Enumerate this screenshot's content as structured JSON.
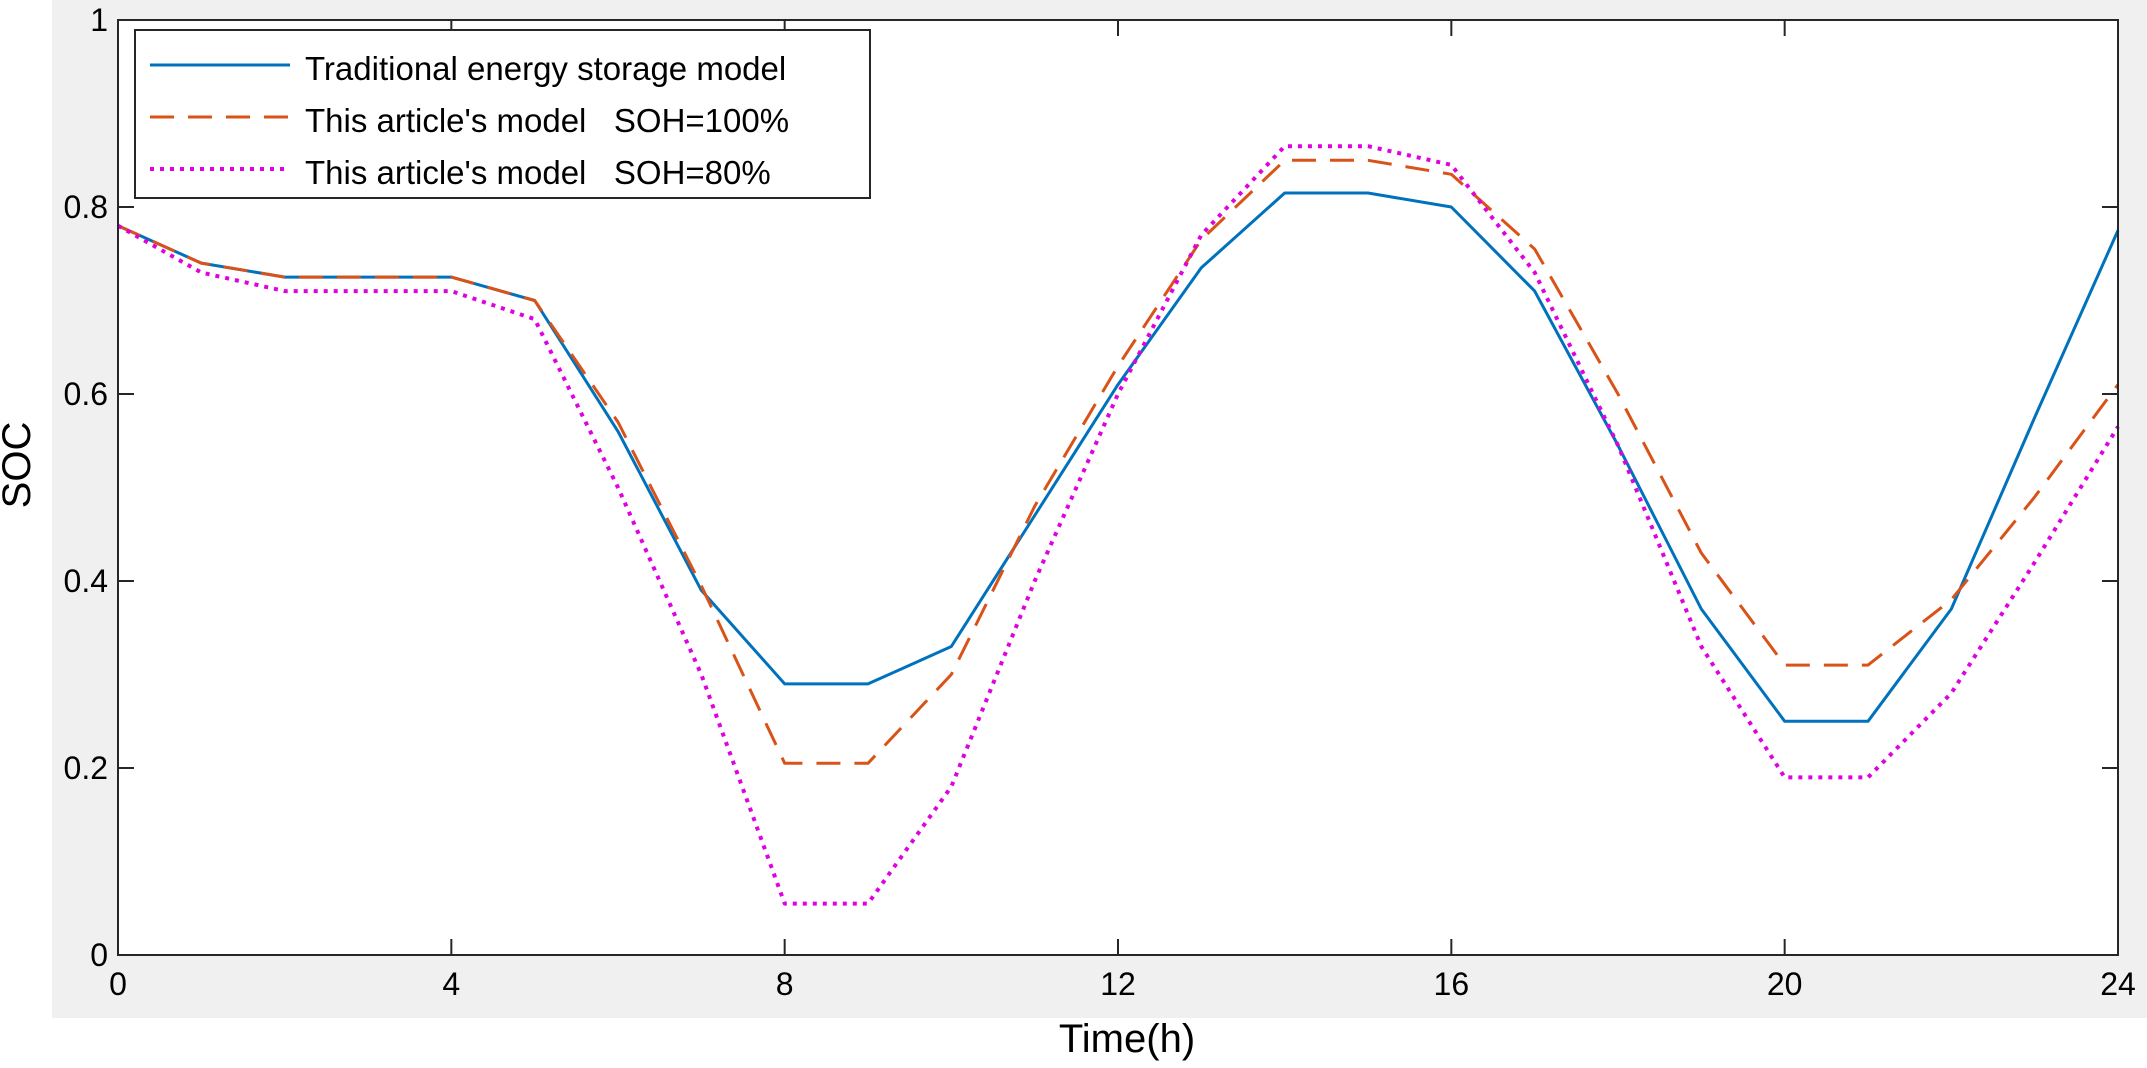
{
  "chart_data": {
    "type": "line",
    "title": "",
    "xlabel": "Time(h)",
    "ylabel": "SOC",
    "xlim": [
      0,
      24
    ],
    "ylim": [
      0,
      1
    ],
    "grid": false,
    "legend_position": "top-left",
    "x": [
      0,
      1,
      2,
      3,
      4,
      5,
      6,
      7,
      8,
      9,
      10,
      11,
      12,
      13,
      14,
      15,
      16,
      17,
      18,
      19,
      20,
      21,
      22,
      23,
      24
    ],
    "xticks": [
      0,
      4,
      8,
      12,
      16,
      20,
      24
    ],
    "xtick_labels": [
      "0",
      "4",
      "8",
      "12",
      "16",
      "20",
      "24"
    ],
    "yticks": [
      0,
      0.2,
      0.4,
      0.6,
      0.8,
      1
    ],
    "ytick_labels": [
      "0",
      "0.2",
      "0.4",
      "0.6",
      "0.8",
      "1"
    ],
    "series": [
      {
        "name": "Traditional energy storage model",
        "color": "#0072BD",
        "dash": "solid",
        "values": [
          0.78,
          0.74,
          0.725,
          0.725,
          0.725,
          0.7,
          0.56,
          0.39,
          0.29,
          0.29,
          0.33,
          0.47,
          0.61,
          0.735,
          0.815,
          0.815,
          0.8,
          0.71,
          0.545,
          0.37,
          0.25,
          0.25,
          0.37,
          0.575,
          0.775
        ]
      },
      {
        "name": "This article's model   SOH=100%",
        "color": "#D95319",
        "dash": "dashed",
        "values": [
          0.78,
          0.74,
          0.725,
          0.725,
          0.725,
          0.7,
          0.57,
          0.395,
          0.205,
          0.205,
          0.3,
          0.48,
          0.63,
          0.765,
          0.85,
          0.85,
          0.835,
          0.755,
          0.6,
          0.43,
          0.31,
          0.31,
          0.38,
          0.49,
          0.61
        ]
      },
      {
        "name": "This article's model   SOH=80%",
        "color": "#E000E0",
        "dash": "dotted",
        "values": [
          0.78,
          0.73,
          0.71,
          0.71,
          0.71,
          0.68,
          0.5,
          0.3,
          0.055,
          0.055,
          0.18,
          0.4,
          0.6,
          0.77,
          0.865,
          0.865,
          0.845,
          0.73,
          0.545,
          0.33,
          0.19,
          0.19,
          0.28,
          0.42,
          0.565
        ]
      }
    ]
  }
}
